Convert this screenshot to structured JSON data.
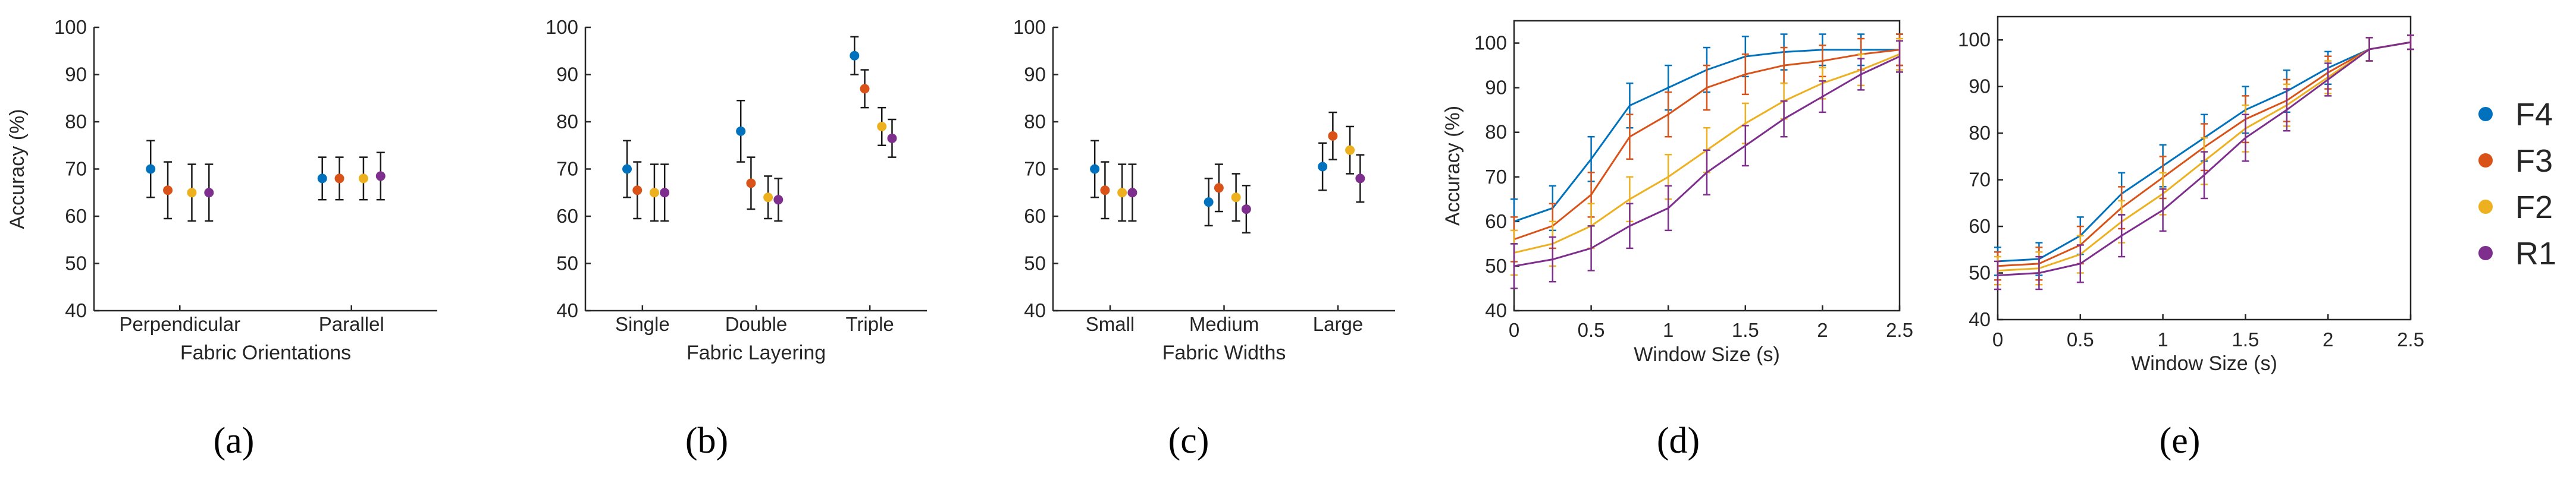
{
  "figure": {
    "legend": [
      {
        "name": "F4",
        "color": "#0072BD"
      },
      {
        "name": "F3",
        "color": "#D95319"
      },
      {
        "name": "F2",
        "color": "#EDB120"
      },
      {
        "name": "R1",
        "color": "#7E2F8E"
      }
    ],
    "legend_placement": "right"
  },
  "chart_data": [
    {
      "panel_label": "(a)",
      "type": "scatter",
      "error_bars": true,
      "title": "",
      "xlabel": "Fabric Orientations",
      "ylabel": "Accuracy (%)",
      "ylim": [
        40,
        100
      ],
      "yticks": [
        40,
        50,
        60,
        70,
        80,
        90,
        100
      ],
      "categories": [
        "Perpendicular",
        "Parallel"
      ],
      "series": [
        {
          "name": "F4",
          "values": [
            70,
            68
          ],
          "errors": [
            6,
            4.5
          ]
        },
        {
          "name": "F3",
          "values": [
            65.5,
            68
          ],
          "errors": [
            6,
            4.5
          ]
        },
        {
          "name": "F2",
          "values": [
            65,
            68
          ],
          "errors": [
            6,
            4.5
          ]
        },
        {
          "name": "R1",
          "values": [
            65,
            68.5
          ],
          "errors": [
            6,
            5
          ]
        }
      ],
      "grid": false,
      "legend": "right"
    },
    {
      "panel_label": "(b)",
      "type": "scatter",
      "error_bars": true,
      "title": "",
      "xlabel": "Fabric Layering",
      "ylabel": "",
      "ylim": [
        40,
        100
      ],
      "yticks": [
        40,
        50,
        60,
        70,
        80,
        90,
        100
      ],
      "categories": [
        "Single",
        "Double",
        "Triple"
      ],
      "series": [
        {
          "name": "F4",
          "values": [
            70,
            78,
            94
          ],
          "errors": [
            6,
            6.5,
            4
          ]
        },
        {
          "name": "F3",
          "values": [
            65.5,
            67,
            87
          ],
          "errors": [
            6,
            5.5,
            4
          ]
        },
        {
          "name": "F2",
          "values": [
            65,
            64,
            79
          ],
          "errors": [
            6,
            4.5,
            4
          ]
        },
        {
          "name": "R1",
          "values": [
            65,
            63.5,
            76.5
          ],
          "errors": [
            6,
            4.5,
            4
          ]
        }
      ],
      "grid": false,
      "legend": "right"
    },
    {
      "panel_label": "(c)",
      "type": "scatter",
      "error_bars": true,
      "title": "",
      "xlabel": "Fabric Widths",
      "ylabel": "",
      "ylim": [
        40,
        100
      ],
      "yticks": [
        40,
        50,
        60,
        70,
        80,
        90,
        100
      ],
      "categories": [
        "Small",
        "Medium",
        "Large"
      ],
      "series": [
        {
          "name": "F4",
          "values": [
            70,
            63,
            70.5
          ],
          "errors": [
            6,
            5,
            5
          ]
        },
        {
          "name": "F3",
          "values": [
            65.5,
            66,
            77
          ],
          "errors": [
            6,
            5,
            5
          ]
        },
        {
          "name": "F2",
          "values": [
            65,
            64,
            74
          ],
          "errors": [
            6,
            5,
            5
          ]
        },
        {
          "name": "R1",
          "values": [
            65,
            61.5,
            68
          ],
          "errors": [
            6,
            5,
            5
          ]
        }
      ],
      "grid": false,
      "legend": "right"
    },
    {
      "panel_label": "(d)",
      "type": "line",
      "error_bars": true,
      "title": "",
      "xlabel": "Window Size (s)",
      "ylabel": "Accuracy (%)",
      "xlim": [
        0,
        2.5
      ],
      "xticks": [
        0,
        0.5,
        1,
        1.5,
        2,
        2.5
      ],
      "xtick_labels": [
        "0",
        "0.5",
        "1",
        "1.5",
        "2",
        "2.5"
      ],
      "ylim": [
        40,
        105
      ],
      "yticks": [
        40,
        50,
        60,
        70,
        80,
        90,
        100
      ],
      "x": [
        0,
        0.25,
        0.5,
        0.75,
        1,
        1.25,
        1.5,
        1.75,
        2,
        2.25,
        2.5
      ],
      "series": [
        {
          "name": "F4",
          "values": [
            60,
            63,
            74,
            86,
            90,
            94,
            97,
            98,
            98.5,
            98.5,
            98.5
          ],
          "errors": [
            5,
            5,
            5,
            5,
            5,
            5,
            4.5,
            4,
            3.5,
            3.5,
            3.5
          ]
        },
        {
          "name": "F3",
          "values": [
            56,
            59,
            66,
            79,
            84,
            90,
            93,
            95,
            96,
            97.5,
            98.5
          ],
          "errors": [
            5,
            5,
            5,
            5,
            5,
            5,
            4.5,
            4,
            3.5,
            3.5,
            3.5
          ]
        },
        {
          "name": "F2",
          "values": [
            53,
            55,
            59,
            65,
            70,
            76,
            82,
            87,
            91,
            94,
            97.5
          ],
          "errors": [
            5,
            5,
            5,
            5,
            5,
            5,
            4.5,
            4,
            3.5,
            3.5,
            3.5
          ]
        },
        {
          "name": "R1",
          "values": [
            50,
            51.5,
            54,
            59,
            63,
            71,
            77,
            83,
            88,
            93,
            97
          ],
          "errors": [
            5,
            5,
            5,
            5,
            5,
            5,
            4.5,
            4,
            3.5,
            3.5,
            3.5
          ]
        }
      ],
      "grid": false,
      "legend": "right"
    },
    {
      "panel_label": "(e)",
      "type": "line",
      "error_bars": true,
      "title": "",
      "xlabel": "Window Size (s)",
      "ylabel": "",
      "xlim": [
        0,
        2.5
      ],
      "xticks": [
        0,
        0.5,
        1,
        1.5,
        2,
        2.5
      ],
      "xtick_labels": [
        "0",
        "0.5",
        "1",
        "1.5",
        "2",
        "2.5"
      ],
      "ylim": [
        40,
        105
      ],
      "yticks": [
        40,
        50,
        60,
        70,
        80,
        90,
        100
      ],
      "x": [
        0,
        0.25,
        0.5,
        0.75,
        1,
        1.25,
        1.5,
        1.75,
        2,
        2.25,
        2.5
      ],
      "series": [
        {
          "name": "F4",
          "values": [
            52.5,
            53,
            58,
            67,
            73,
            79,
            85,
            89,
            94,
            98,
            99.5
          ],
          "errors": [
            3,
            3.5,
            4,
            4.5,
            4.5,
            5,
            5,
            4.5,
            3.5,
            2.5,
            1.5
          ]
        },
        {
          "name": "F3",
          "values": [
            51.5,
            52,
            56,
            64,
            70.5,
            77,
            83,
            87,
            93,
            98,
            99.5
          ],
          "errors": [
            3,
            3.5,
            4,
            4.5,
            4.5,
            5,
            5,
            4.5,
            3.5,
            2.5,
            1.5
          ]
        },
        {
          "name": "F2",
          "values": [
            50.5,
            51,
            54,
            61,
            67,
            74,
            81,
            86,
            92,
            98,
            99.5
          ],
          "errors": [
            3,
            3.5,
            4,
            4.5,
            4.5,
            5,
            5,
            4.5,
            3.5,
            2.5,
            1.5
          ]
        },
        {
          "name": "R1",
          "values": [
            49.5,
            50,
            52,
            58,
            63.5,
            71,
            79,
            85,
            91.5,
            98,
            99.5
          ],
          "errors": [
            3,
            3.5,
            4,
            4.5,
            4.5,
            5,
            5,
            4.5,
            3.5,
            2.5,
            1.5
          ]
        }
      ],
      "grid": false,
      "legend": "right"
    }
  ]
}
